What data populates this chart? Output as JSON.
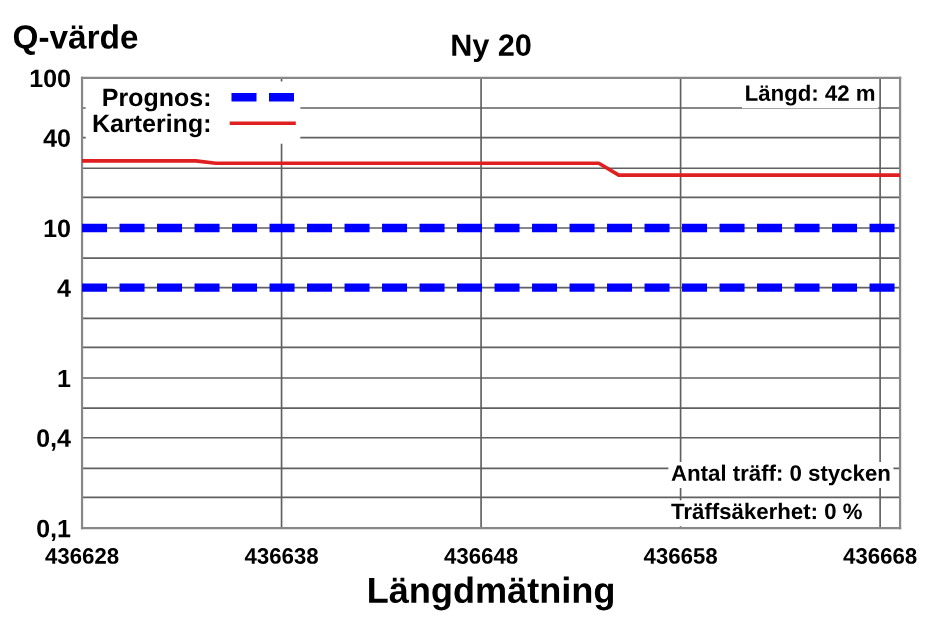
{
  "chart_data": {
    "type": "line",
    "title": "Ny 20",
    "xlabel": "Längdmätning",
    "ylabel": "Q-värde",
    "series": [
      {
        "name": "Prognos:",
        "color": "#0000ff",
        "line_style": "dashed",
        "x": [
          436628,
          436669
        ],
        "values": [
          10,
          10
        ]
      },
      {
        "color": "#0000ff",
        "line_style": "dashed",
        "x": [
          436628,
          436669
        ],
        "values": [
          4,
          4
        ]
      },
      {
        "name": "Kartering:",
        "color": "#e02020",
        "line_style": "solid",
        "x": [
          436628,
          436633.7,
          436634.7,
          436653.9,
          436654.9,
          436669
        ],
        "values": [
          28,
          28,
          27,
          27,
          22.5,
          22.5
        ]
      }
    ],
    "log": "y",
    "xlim": [
      436628,
      436669
    ],
    "xticks": [
      436628,
      436638,
      436648,
      436658,
      436668
    ],
    "ylim": [
      0.1,
      100
    ],
    "yticks": [
      {
        "value": 0.1,
        "label": "0,1"
      },
      {
        "value": 0.16,
        "label": null
      },
      {
        "value": 0.25,
        "label": null
      },
      {
        "value": 0.4,
        "label": "0,4"
      },
      {
        "value": 0.63,
        "label": null
      },
      1,
      {
        "value": 1.6,
        "label": null
      },
      {
        "value": 2.5,
        "label": null
      },
      4,
      {
        "value": 6.3,
        "label": null
      },
      10,
      {
        "value": 16,
        "label": null
      },
      {
        "value": 25,
        "label": null
      },
      40,
      {
        "value": 63,
        "label": null
      },
      100
    ],
    "grid": true,
    "legend": "top left",
    "marker": "none",
    "annotations": [
      "Längd: 42 m",
      "Antal träff: 0 stycken",
      "Träffsäkerhet: 0 %"
    ]
  }
}
